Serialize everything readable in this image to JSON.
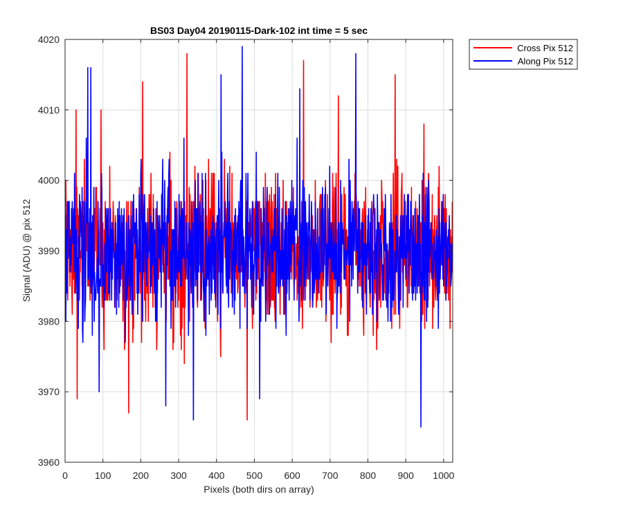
{
  "chart_data": {
    "type": "line",
    "title": "BS03 Day04 20190115-Dark-102 int time = 5 sec",
    "xlabel": "Pixels (both dirs on array)",
    "ylabel": "Signal (ADU) @ pix 512",
    "xlim": [
      0,
      1024
    ],
    "ylim": [
      3960,
      4020
    ],
    "xticks": [
      0,
      100,
      200,
      300,
      400,
      500,
      600,
      700,
      800,
      900,
      1000
    ],
    "yticks": [
      3960,
      3970,
      3980,
      3990,
      4000,
      4010,
      4020
    ],
    "grid": true,
    "legend_position": "outside-top-right",
    "series": [
      {
        "name": "Cross Pix 512",
        "color": "#ff0000",
        "mean": 3990,
        "min": 3966,
        "max": 4018,
        "peaks": [
          [
            29,
            4010
          ],
          [
            32,
            3969
          ],
          [
            95,
            4010
          ],
          [
            168,
            3967
          ],
          [
            205,
            4014
          ],
          [
            322,
            4018
          ],
          [
            481,
            3966
          ],
          [
            630,
            4017
          ],
          [
            722,
            4012
          ],
          [
            872,
            4015
          ],
          [
            948,
            4008
          ]
        ]
      },
      {
        "name": "Along Pix 512",
        "color": "#0000ff",
        "mean": 3990,
        "min": 3965,
        "max": 4019,
        "peaks": [
          [
            60,
            4016
          ],
          [
            68,
            4016
          ],
          [
            90,
            3970
          ],
          [
            266,
            3968
          ],
          [
            339,
            3966
          ],
          [
            412,
            4015
          ],
          [
            468,
            4019
          ],
          [
            514,
            3969
          ],
          [
            620,
            4013
          ],
          [
            768,
            4018
          ],
          [
            940,
            3965
          ]
        ]
      }
    ]
  }
}
